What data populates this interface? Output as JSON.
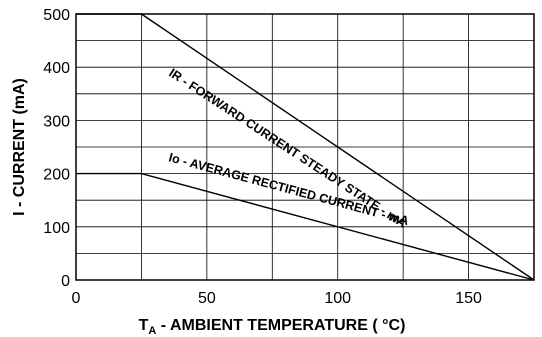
{
  "chart_data": {
    "type": "line",
    "xlabel_prefix": "T",
    "xlabel_subscript": "A",
    "xlabel_rest": " - AMBIENT TEMPERATURE  ( °C)",
    "ylabel": "I - CURRENT (mA)",
    "xlim": [
      0,
      175
    ],
    "ylim": [
      0,
      500
    ],
    "xticks": [
      0,
      50,
      100,
      150
    ],
    "yticks": [
      0,
      100,
      200,
      300,
      400,
      500
    ],
    "grid": true,
    "series": [
      {
        "name": "IR - FORWARD CURRENT STEADY STATE - mA",
        "x": [
          0,
          25,
          175
        ],
        "y": [
          500,
          500,
          0
        ]
      },
      {
        "name": "Io - AVERAGE RECTIFIED CURRENT - mA",
        "x": [
          0,
          25,
          175
        ],
        "y": [
          200,
          200,
          0
        ]
      }
    ]
  }
}
